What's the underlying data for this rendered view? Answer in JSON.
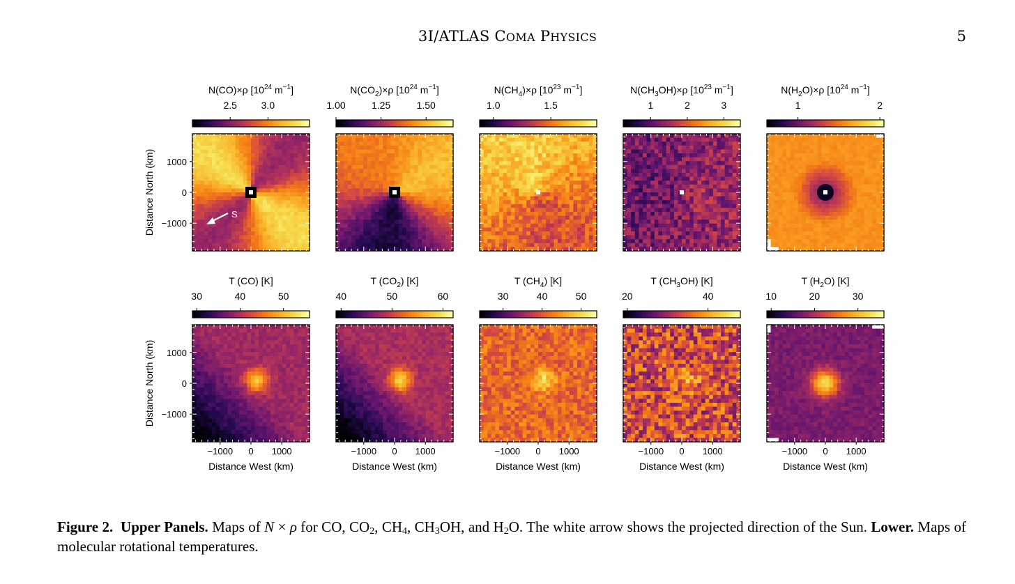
{
  "header": {
    "title_lead": "3I/ATLAS C",
    "title_sc1": "OMA",
    "title_mid": " P",
    "title_sc2": "HYSICS",
    "page_number": "5"
  },
  "arrow_label": "S",
  "chart_data": {
    "type": "heatmap",
    "x_axis_label": "Distance West (km)",
    "y_axis_label": "Distance North (km)",
    "x_ticks": [
      -1000,
      0,
      1000
    ],
    "y_ticks": [
      1000,
      0,
      -1000
    ],
    "x_tick_labels": [
      "−1000",
      "0",
      "1000"
    ],
    "y_tick_labels": [
      "1000",
      "0",
      "−1000"
    ],
    "axis_range_km": [
      -1900,
      1900
    ],
    "colormap": "inferno",
    "rows": [
      {
        "row": "upper",
        "quantity": "N×ρ",
        "panels": [
          {
            "molecule": "CO",
            "label_pre": "N(CO)×ρ [10",
            "label_exp": "24",
            "label_unit": " m",
            "label_unit_exp": "−1",
            "label_post": "]",
            "colorbar_range": [
              2.0,
              3.55
            ],
            "colorbar_ticks": [
              2.5,
              3.0
            ],
            "colorbar_tick_labels": [
              "2.5",
              "3.0"
            ]
          },
          {
            "molecule": "CO2",
            "label_pre": "N(CO",
            "label_sub": "2",
            "label_mid": ")×ρ [10",
            "label_exp": "24",
            "label_unit": " m",
            "label_unit_exp": "−1",
            "label_post": "]",
            "colorbar_range": [
              1.0,
              1.65
            ],
            "colorbar_ticks": [
              1.0,
              1.25,
              1.5
            ],
            "colorbar_tick_labels": [
              "1.00",
              "1.25",
              "1.50"
            ]
          },
          {
            "molecule": "CH4",
            "label_pre": "N(CH",
            "label_sub": "4",
            "label_mid": ")×ρ [10",
            "label_exp": "23",
            "label_unit": " m",
            "label_unit_exp": "−1",
            "label_post": "]",
            "colorbar_range": [
              0.88,
              1.9
            ],
            "colorbar_ticks": [
              1.0,
              1.5
            ],
            "colorbar_tick_labels": [
              "1.0",
              "1.5"
            ]
          },
          {
            "molecule": "CH3OH",
            "label_pre": "N(CH",
            "label_sub": "3",
            "label_mid": "OH)×ρ [10",
            "label_exp": "23",
            "label_unit": " m",
            "label_unit_exp": "−1",
            "label_post": "]",
            "colorbar_range": [
              0.25,
              3.45
            ],
            "colorbar_ticks": [
              1,
              2,
              3
            ],
            "colorbar_tick_labels": [
              "1",
              "2",
              "3"
            ]
          },
          {
            "molecule": "H2O",
            "label_pre": "N(H",
            "label_sub": "2",
            "label_mid": "O)×ρ [10",
            "label_exp": "24",
            "label_unit": " m",
            "label_unit_exp": "−1",
            "label_post": "]",
            "colorbar_range": [
              0.62,
              2.05
            ],
            "colorbar_ticks": [
              1,
              2
            ],
            "colorbar_tick_labels": [
              "1",
              "2"
            ]
          }
        ]
      },
      {
        "row": "lower",
        "quantity": "T",
        "panels": [
          {
            "molecule": "CO",
            "label_pre": "T (CO) [K]",
            "colorbar_range": [
              29,
              56
            ],
            "colorbar_ticks": [
              30,
              40,
              50
            ],
            "colorbar_tick_labels": [
              "30",
              "40",
              "50"
            ]
          },
          {
            "molecule": "CO2",
            "label_pre": "T (CO",
            "label_sub": "2",
            "label_mid": ") [K]",
            "colorbar_range": [
              39,
              62
            ],
            "colorbar_ticks": [
              40,
              50,
              60
            ],
            "colorbar_tick_labels": [
              "40",
              "50",
              "60"
            ]
          },
          {
            "molecule": "CH4",
            "label_pre": "T (CH",
            "label_sub": "4",
            "label_mid": ") [K]",
            "colorbar_range": [
              24,
              54
            ],
            "colorbar_ticks": [
              30,
              40,
              50
            ],
            "colorbar_tick_labels": [
              "30",
              "40",
              "50"
            ]
          },
          {
            "molecule": "CH3OH",
            "label_pre": "T (CH",
            "label_sub": "3",
            "label_mid": "OH) [K]",
            "colorbar_range": [
              19,
              48
            ],
            "colorbar_ticks": [
              20,
              40
            ],
            "colorbar_tick_labels": [
              "20",
              "40"
            ]
          },
          {
            "molecule": "H2O",
            "label_pre": "T (H",
            "label_sub": "2",
            "label_mid": "O) [K]",
            "colorbar_range": [
              9,
              36
            ],
            "colorbar_ticks": [
              10,
              20,
              30
            ],
            "colorbar_tick_labels": [
              "10",
              "20",
              "30"
            ]
          }
        ]
      }
    ]
  },
  "caption": {
    "figure_label": "Figure 2.",
    "upper_label": "Upper Panels.",
    "text1": " Maps of ",
    "n_var": "N",
    "times": " × ",
    "rho_var": "ρ",
    "text2": " for CO, CO",
    "sub_co2": "2",
    "text3": ", CH",
    "sub_ch4": "4",
    "text4": ", CH",
    "sub_ch3": "3",
    "text5": "OH, and H",
    "sub_h2o": "2",
    "text6": "O. The white arrow shows the projected direction of the Sun. ",
    "lower_label": "Lower.",
    "text7": " Maps of molecular rotational temperatures."
  }
}
